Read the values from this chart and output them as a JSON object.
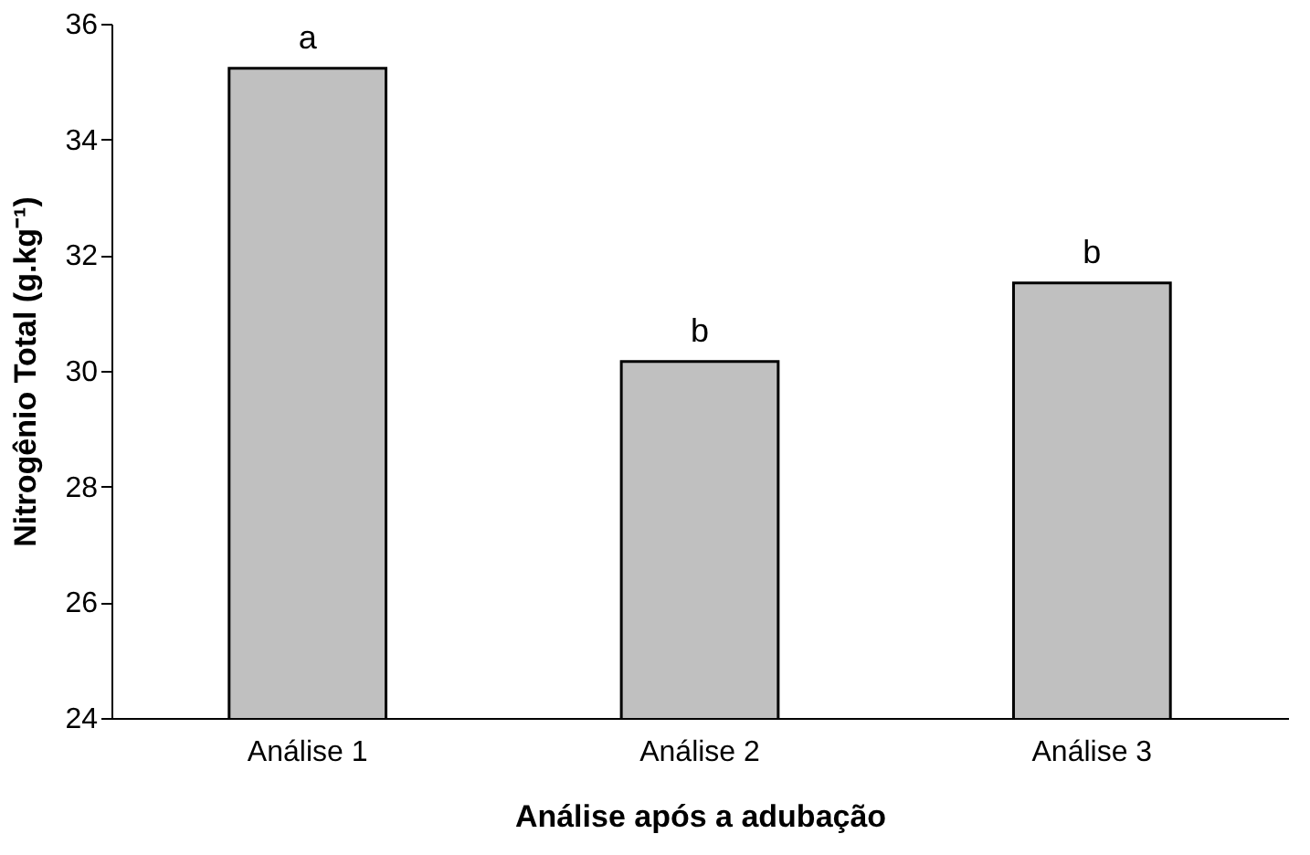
{
  "chart_data": {
    "type": "bar",
    "xlabel": "Análise após a adubação",
    "ylabel": "Nitrogênio Total (g.kg⁻¹)",
    "categories": [
      "Análise 1",
      "Análise 2",
      "Análise 3"
    ],
    "values": [
      35.23,
      30.16,
      31.52
    ],
    "color": "#c0c0c0",
    "ylim": [
      24,
      36
    ],
    "yticks": [
      24,
      26,
      28,
      30,
      32,
      34,
      36
    ],
    "grid": false,
    "annotations": [
      {
        "text": "a",
        "x": "Análise 1",
        "y": 35.23
      },
      {
        "text": "b",
        "x": "Análise 2",
        "y": 30.16
      },
      {
        "text": "b",
        "x": "Análise 3",
        "y": 31.52
      }
    ]
  }
}
